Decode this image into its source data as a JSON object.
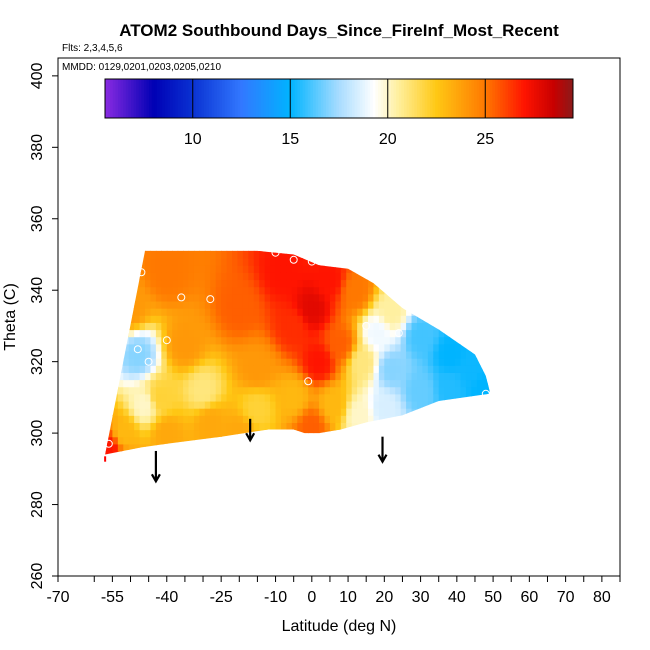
{
  "chart_data": {
    "type": "heatmap",
    "title": "ATOM2 Southbound Days_Since_FireInf_Most_Recent",
    "flights_label": "Flts: 2,3,4,5,6",
    "dates_label": "MMDD: 0129,0201,0203,0205,0210",
    "xlabel": "Latitude (deg N)",
    "ylabel": "Theta (C)",
    "xlim": [
      -70,
      85
    ],
    "ylim": [
      260,
      405
    ],
    "x_tick_labels": [
      "-70",
      "-55",
      "-40",
      "-25",
      "-10",
      "0",
      "10",
      "20",
      "30",
      "40",
      "50",
      "60",
      "70",
      "80"
    ],
    "x_tick_values": [
      -70,
      -55,
      -40,
      -25,
      -10,
      0,
      10,
      20,
      30,
      40,
      50,
      60,
      70,
      80
    ],
    "x_minor_ticks": [
      -60,
      -50,
      -45,
      -35,
      -30,
      -20,
      -15,
      -5,
      5,
      15,
      25,
      35,
      45,
      55,
      65,
      75,
      85
    ],
    "y_tick_labels": [
      "260",
      "280",
      "300",
      "320",
      "340",
      "360",
      "380",
      "400"
    ],
    "y_tick_values": [
      260,
      280,
      300,
      320,
      340,
      360,
      380,
      400
    ],
    "colorbar": {
      "range": [
        5.5,
        29.5
      ],
      "tick_values": [
        10,
        15,
        20,
        25
      ],
      "tick_labels": [
        "10",
        "15",
        "20",
        "25"
      ],
      "stops": [
        {
          "v": 5.5,
          "c": "#8a2be2"
        },
        {
          "v": 8,
          "c": "#0000b4"
        },
        {
          "v": 10,
          "c": "#0a32d2"
        },
        {
          "v": 12.5,
          "c": "#3278ff"
        },
        {
          "v": 15,
          "c": "#00b4ff"
        },
        {
          "v": 17.5,
          "c": "#a8dcff"
        },
        {
          "v": 19.3,
          "c": "#ffffff"
        },
        {
          "v": 20.5,
          "c": "#fff0a0"
        },
        {
          "v": 22.5,
          "c": "#ffc814"
        },
        {
          "v": 25,
          "c": "#ff7800"
        },
        {
          "v": 27,
          "c": "#ff1400"
        },
        {
          "v": 28.5,
          "c": "#c80000"
        },
        {
          "v": 29.5,
          "c": "#8b1a1a"
        }
      ]
    },
    "field_outline_lat": [
      -57,
      -46,
      -43,
      -38,
      -28,
      -15,
      -5,
      2,
      10,
      17,
      25,
      35,
      45,
      48,
      49,
      49,
      35,
      25,
      15,
      8,
      2,
      -2,
      -5,
      -12,
      -25,
      -40,
      -47,
      -57
    ],
    "field_outline_theta": [
      294,
      351,
      351,
      351,
      351,
      351,
      350,
      347,
      346,
      342,
      335,
      329,
      322,
      316,
      312,
      311,
      309,
      305,
      303,
      301,
      300,
      300,
      301,
      301,
      299,
      297,
      296,
      294
    ],
    "field_control_points": [
      {
        "lat": -50,
        "theta": 335,
        "value": 24
      },
      {
        "lat": -48,
        "theta": 322,
        "value": 17
      },
      {
        "lat": -46,
        "theta": 308,
        "value": 20
      },
      {
        "lat": -52,
        "theta": 300,
        "value": 23
      },
      {
        "lat": -56,
        "theta": 296,
        "value": 27
      },
      {
        "lat": -40,
        "theta": 345,
        "value": 25
      },
      {
        "lat": -35,
        "theta": 325,
        "value": 24
      },
      {
        "lat": -30,
        "theta": 312,
        "value": 21
      },
      {
        "lat": -28,
        "theta": 303,
        "value": 23.5
      },
      {
        "lat": -40,
        "theta": 300,
        "value": 23.5
      },
      {
        "lat": -42,
        "theta": 310,
        "value": 22
      },
      {
        "lat": -20,
        "theta": 335,
        "value": 25.5
      },
      {
        "lat": -15,
        "theta": 318,
        "value": 24
      },
      {
        "lat": -15,
        "theta": 307,
        "value": 22
      },
      {
        "lat": -20,
        "theta": 300,
        "value": 23.5
      },
      {
        "lat": -8,
        "theta": 345,
        "value": 27
      },
      {
        "lat": -5,
        "theta": 330,
        "value": 26.5
      },
      {
        "lat": -5,
        "theta": 310,
        "value": 23
      },
      {
        "lat": 0,
        "theta": 302,
        "value": 25.5
      },
      {
        "lat": 0,
        "theta": 335,
        "value": 27.8
      },
      {
        "lat": 2,
        "theta": 320,
        "value": 27
      },
      {
        "lat": 5,
        "theta": 343,
        "value": 27
      },
      {
        "lat": 8,
        "theta": 325,
        "value": 25.5
      },
      {
        "lat": 6,
        "theta": 308,
        "value": 23
      },
      {
        "lat": 12,
        "theta": 340,
        "value": 25
      },
      {
        "lat": 14,
        "theta": 320,
        "value": 21
      },
      {
        "lat": 13,
        "theta": 305,
        "value": 20
      },
      {
        "lat": 18,
        "theta": 328,
        "value": 19
      },
      {
        "lat": 22,
        "theta": 334,
        "value": 20.5
      },
      {
        "lat": 22,
        "theta": 318,
        "value": 17
      },
      {
        "lat": 20,
        "theta": 307,
        "value": 18.5
      },
      {
        "lat": 30,
        "theta": 327,
        "value": 16
      },
      {
        "lat": 30,
        "theta": 312,
        "value": 16.5
      },
      {
        "lat": 38,
        "theta": 322,
        "value": 15
      },
      {
        "lat": 38,
        "theta": 313,
        "value": 15.5
      },
      {
        "lat": 44,
        "theta": 317,
        "value": 15.2
      },
      {
        "lat": 47,
        "theta": 313,
        "value": 15
      }
    ],
    "sample_points": [
      {
        "lat": -47,
        "theta": 345
      },
      {
        "lat": -48,
        "theta": 323.5
      },
      {
        "lat": -45,
        "theta": 320
      },
      {
        "lat": -40,
        "theta": 326
      },
      {
        "lat": -36,
        "theta": 338
      },
      {
        "lat": -28,
        "theta": 337.5
      },
      {
        "lat": -10,
        "theta": 350.5
      },
      {
        "lat": -5,
        "theta": 348.5
      },
      {
        "lat": 0,
        "theta": 348
      },
      {
        "lat": 14,
        "theta": 345.5
      },
      {
        "lat": 15,
        "theta": 330
      },
      {
        "lat": 24,
        "theta": 328
      },
      {
        "lat": -1,
        "theta": 314.5
      },
      {
        "lat": 48,
        "theta": 311
      },
      {
        "lat": -56,
        "theta": 297
      }
    ],
    "arrows": [
      {
        "lat": -43,
        "theta_top": 295,
        "theta_tip": 286.5
      },
      {
        "lat": -17,
        "theta_top": 304,
        "theta_tip": 298
      },
      {
        "lat": 19.5,
        "theta_top": 299,
        "theta_tip": 292
      }
    ]
  }
}
